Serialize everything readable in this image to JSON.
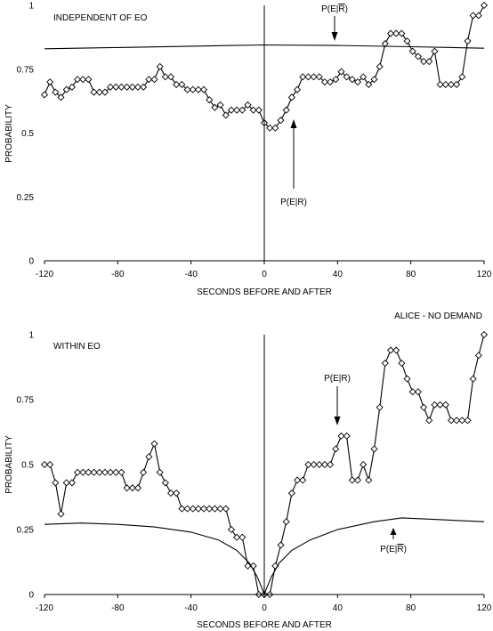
{
  "chart_data": [
    {
      "type": "line",
      "title": "",
      "xlabel": "SECONDS BEFORE AND AFTER",
      "ylabel": "PROBABILITY",
      "xlim": [
        -120,
        120
      ],
      "ylim": [
        0,
        1
      ],
      "xticks": [
        "-120",
        "-80",
        "-40",
        "0",
        "40",
        "80",
        "120"
      ],
      "yticks": [
        "0",
        "0.25",
        "0.5",
        "0.75",
        "1"
      ],
      "grid": false,
      "annotations": {
        "panel_label": "INDEPENDENT OF EO",
        "cond_label": "P(E|R)",
        "uncond_label_base": "P(E|",
        "uncond_label_bar": "R",
        "uncond_label_end": ")"
      },
      "series": [
        {
          "style": "marker-line",
          "x": [
            -120,
            -117,
            -114,
            -111,
            -108,
            -105,
            -102,
            -99,
            -96,
            -93,
            -90,
            -87,
            -84,
            -81,
            -78,
            -75,
            -72,
            -69,
            -66,
            -63,
            -60,
            -57,
            -54,
            -51,
            -48,
            -45,
            -42,
            -39,
            -36,
            -33,
            -30,
            -27,
            -24,
            -21,
            -18,
            -15,
            -12,
            -9,
            -6,
            -3,
            0,
            3,
            6,
            9,
            12,
            15,
            18,
            21,
            24,
            27,
            30,
            33,
            36,
            39,
            42,
            45,
            48,
            51,
            54,
            57,
            60,
            63,
            66,
            69,
            72,
            75,
            78,
            81,
            84,
            87,
            90,
            93,
            96,
            99,
            102,
            105,
            108,
            111,
            114,
            117,
            120
          ],
          "y": [
            0.65,
            0.7,
            0.66,
            0.64,
            0.67,
            0.68,
            0.71,
            0.71,
            0.71,
            0.66,
            0.66,
            0.66,
            0.68,
            0.68,
            0.68,
            0.68,
            0.68,
            0.68,
            0.68,
            0.71,
            0.71,
            0.76,
            0.72,
            0.72,
            0.69,
            0.69,
            0.67,
            0.67,
            0.67,
            0.67,
            0.63,
            0.6,
            0.61,
            0.57,
            0.59,
            0.59,
            0.59,
            0.61,
            0.59,
            0.59,
            0.54,
            0.52,
            0.52,
            0.55,
            0.59,
            0.64,
            0.67,
            0.72,
            0.72,
            0.72,
            0.72,
            0.7,
            0.7,
            0.71,
            0.74,
            0.72,
            0.71,
            0.7,
            0.72,
            0.69,
            0.71,
            0.76,
            0.85,
            0.89,
            0.89,
            0.89,
            0.86,
            0.82,
            0.8,
            0.78,
            0.78,
            0.82,
            0.69,
            0.69,
            0.69,
            0.69,
            0.72,
            0.86,
            0.96,
            0.96,
            1.0
          ]
        },
        {
          "style": "line",
          "x": [
            -120,
            -80,
            -40,
            0,
            40,
            80,
            120
          ],
          "y": [
            0.83,
            0.835,
            0.84,
            0.845,
            0.843,
            0.838,
            0.832
          ]
        }
      ]
    },
    {
      "type": "line",
      "title": "ALICE - NO DEMAND",
      "xlabel": "SECONDS BEFORE AND AFTER",
      "ylabel": "PROBABILITY",
      "xlim": [
        -120,
        120
      ],
      "ylim": [
        0,
        1
      ],
      "xticks": [
        "-120",
        "-80",
        "-40",
        "0",
        "40",
        "80",
        "120"
      ],
      "yticks": [
        "0",
        "0.25",
        "0.5",
        "0.75",
        "1"
      ],
      "grid": false,
      "annotations": {
        "panel_label": "WITHIN EO",
        "cond_label": "P(E|R)",
        "uncond_label_base": "P(E|",
        "uncond_label_bar": "R",
        "uncond_label_end": ")"
      },
      "series": [
        {
          "style": "marker-line",
          "x": [
            -120,
            -117,
            -114,
            -111,
            -108,
            -105,
            -102,
            -99,
            -96,
            -93,
            -90,
            -87,
            -84,
            -81,
            -78,
            -75,
            -72,
            -69,
            -66,
            -63,
            -60,
            -57,
            -54,
            -51,
            -48,
            -45,
            -42,
            -39,
            -36,
            -33,
            -30,
            -27,
            -24,
            -21,
            -18,
            -15,
            -12,
            -9,
            -6,
            -3,
            0,
            3,
            6,
            9,
            12,
            15,
            18,
            21,
            24,
            27,
            30,
            33,
            36,
            39,
            42,
            45,
            48,
            51,
            54,
            57,
            60,
            63,
            66,
            69,
            72,
            75,
            78,
            81,
            84,
            87,
            90,
            93,
            96,
            99,
            102,
            105,
            108,
            111,
            114,
            117,
            120
          ],
          "y": [
            0.5,
            0.5,
            0.43,
            0.31,
            0.43,
            0.43,
            0.47,
            0.47,
            0.47,
            0.47,
            0.47,
            0.47,
            0.47,
            0.47,
            0.47,
            0.41,
            0.41,
            0.41,
            0.47,
            0.53,
            0.58,
            0.47,
            0.43,
            0.39,
            0.39,
            0.33,
            0.33,
            0.33,
            0.33,
            0.33,
            0.33,
            0.33,
            0.33,
            0.33,
            0.25,
            0.22,
            0.22,
            0.11,
            0.11,
            0.0,
            0.0,
            0.0,
            0.11,
            0.19,
            0.28,
            0.39,
            0.44,
            0.44,
            0.5,
            0.5,
            0.5,
            0.5,
            0.5,
            0.56,
            0.61,
            0.61,
            0.44,
            0.44,
            0.5,
            0.44,
            0.56,
            0.72,
            0.89,
            0.94,
            0.94,
            0.89,
            0.83,
            0.78,
            0.78,
            0.72,
            0.67,
            0.73,
            0.73,
            0.73,
            0.67,
            0.67,
            0.67,
            0.67,
            0.83,
            0.92,
            1.0
          ]
        },
        {
          "style": "line",
          "x": [
            -120,
            -100,
            -80,
            -60,
            -40,
            -25,
            -15,
            -8,
            -4,
            -1,
            0,
            1,
            4,
            8,
            15,
            25,
            40,
            60,
            75,
            90,
            105,
            120
          ],
          "y": [
            0.27,
            0.275,
            0.27,
            0.26,
            0.24,
            0.21,
            0.17,
            0.12,
            0.07,
            0.02,
            0.0,
            0.02,
            0.07,
            0.12,
            0.17,
            0.21,
            0.25,
            0.28,
            0.295,
            0.29,
            0.285,
            0.28
          ]
        }
      ]
    }
  ]
}
